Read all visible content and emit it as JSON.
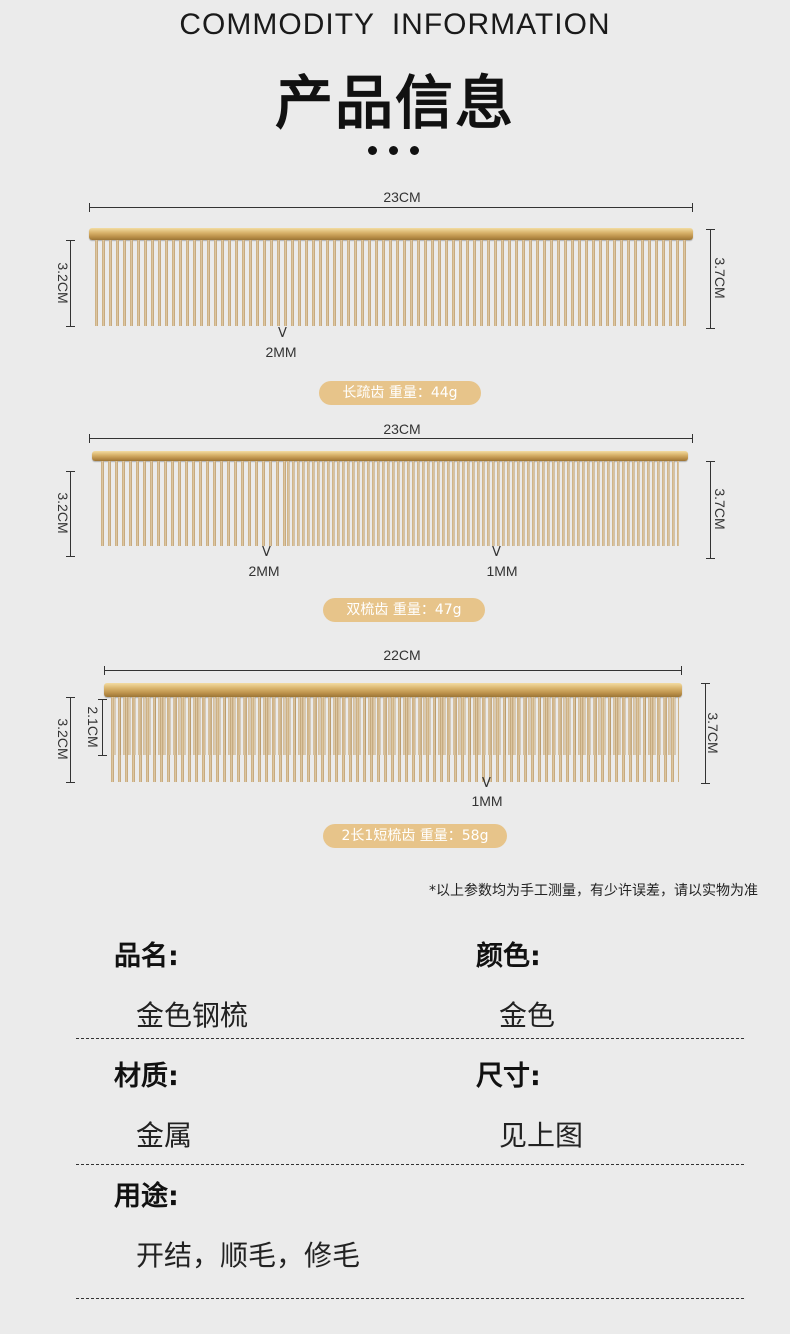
{
  "header": {
    "title_en": "COMMODITY  INFORMATION",
    "title_cn": "产品信息"
  },
  "combs": [
    {
      "width_label": "23CM",
      "left_height": "3.2CM",
      "right_height": "3.7CM",
      "teeth_labels": [
        {
          "v": "V",
          "label": "2MM"
        }
      ],
      "badge": "长疏齿  重量：44g"
    },
    {
      "width_label": "23CM",
      "left_height": "3.2CM",
      "right_height": "3.7CM",
      "teeth_labels": [
        {
          "v": "V",
          "label": "2MM"
        },
        {
          "v": "V",
          "label": "1MM"
        }
      ],
      "badge": "双梳齿  重量：47g"
    },
    {
      "width_label": "22CM",
      "left_height": "3.2CM",
      "inner_height": "2.1CM",
      "right_height": "3.7CM",
      "teeth_labels": [
        {
          "v": "V",
          "label": "1MM"
        }
      ],
      "badge": "2长1短梳齿 重量：58g"
    }
  ],
  "note": "*以上参数均为手工测量，有少许误差，请以实物为准",
  "info": {
    "name_label": "品名:",
    "name_value": "金色钢梳",
    "color_label": "颜色:",
    "color_value": "金色",
    "material_label": "材质:",
    "material_value": "金属",
    "size_label": "尺寸:",
    "size_value": "见上图",
    "usage_label": "用途:",
    "usage_value": "开结，顺毛，修毛"
  },
  "colors": {
    "background": "#ebebeb",
    "gold_badge": "#e7c48a",
    "gold_spine": "#d8b26a"
  }
}
